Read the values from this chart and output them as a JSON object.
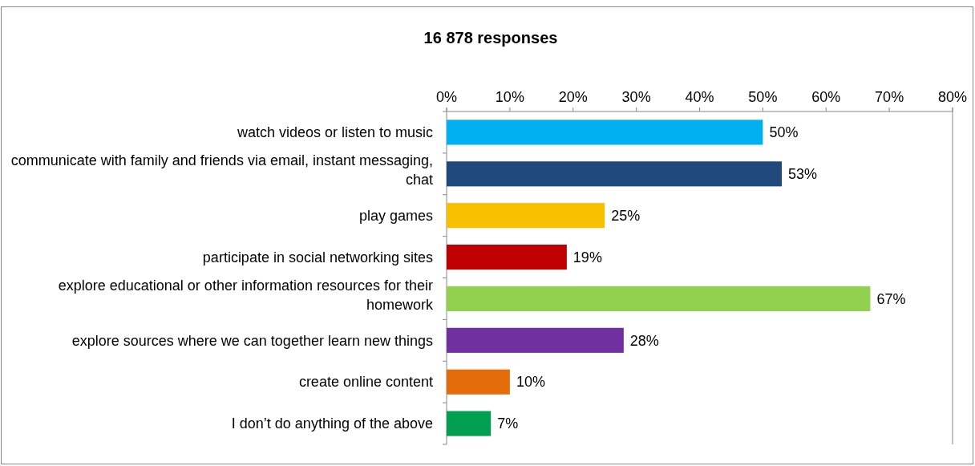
{
  "chart_data": {
    "type": "bar",
    "orientation": "horizontal",
    "title": "16 878 responses",
    "categories": [
      "watch videos or listen to music",
      "communicate with family and friends via email, instant messaging, chat",
      "play games",
      "participate in social networking sites",
      "explore educational or other information resources for their homework",
      "explore sources where we can together learn new things",
      "create online content",
      "I don’t do anything of the above"
    ],
    "values": [
      50,
      53,
      25,
      19,
      67,
      28,
      10,
      7
    ],
    "colors": [
      "#00b0f0",
      "#1f497d",
      "#f9c000",
      "#c00000",
      "#92d050",
      "#7030a0",
      "#e46c0a",
      "#00a050"
    ],
    "value_labels": [
      "50%",
      "53%",
      "25%",
      "19%",
      "67%",
      "28%",
      "10%",
      "7%"
    ],
    "xlim": [
      0,
      80
    ],
    "xticks": [
      {
        "value": 0,
        "label": "0%"
      },
      {
        "value": 10,
        "label": "10%"
      },
      {
        "value": 20,
        "label": "20%"
      },
      {
        "value": 30,
        "label": "30%"
      },
      {
        "value": 40,
        "label": "40%"
      },
      {
        "value": 50,
        "label": "50%"
      },
      {
        "value": 60,
        "label": "60%"
      },
      {
        "value": 70,
        "label": "70%"
      },
      {
        "value": 80,
        "label": "80%"
      }
    ],
    "grid": false
  }
}
